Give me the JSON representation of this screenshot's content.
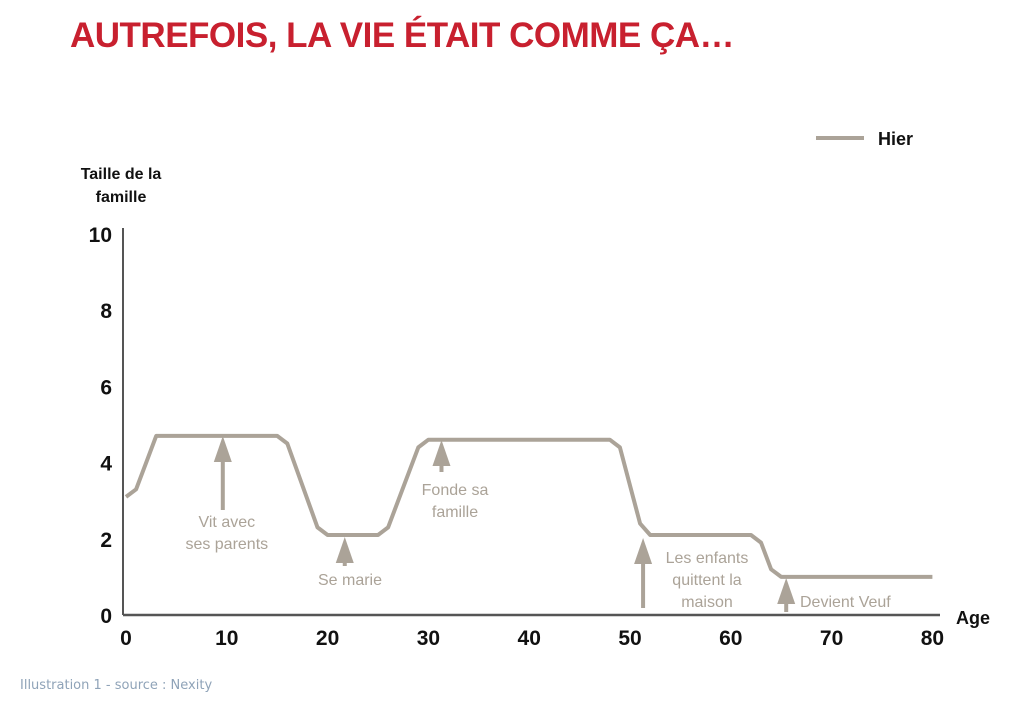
{
  "title": "AUTREFOIS, LA VIE ÉTAIT COMME ÇA…",
  "caption": "Illustration 1 - source : Nexity",
  "colors": {
    "title": "#c8202f",
    "series": "#aba398",
    "axis": "#555555",
    "caption": "#8fa3b8"
  },
  "chart_data": {
    "type": "line",
    "title": "AUTREFOIS, LA VIE ÉTAIT COMME ÇA…",
    "xlabel": "Age",
    "ylabel": "Taille de la famille",
    "ylabel_lines": [
      "Taille de la",
      "famille"
    ],
    "xlim": [
      0,
      80
    ],
    "ylim": [
      0,
      10
    ],
    "x_ticks": [
      0,
      10,
      20,
      30,
      40,
      50,
      60,
      70,
      80
    ],
    "y_ticks": [
      0,
      2,
      4,
      6,
      8,
      10
    ],
    "grid": false,
    "legend": {
      "position": "top-right",
      "entries": [
        "Hier"
      ]
    },
    "series": [
      {
        "name": "Hier",
        "x": [
          0,
          1,
          2,
          3,
          15,
          16,
          19,
          20,
          25,
          26,
          29,
          30,
          48,
          49,
          51,
          52,
          62,
          63,
          64,
          65,
          80
        ],
        "y": [
          3.1,
          3.3,
          4.0,
          4.7,
          4.7,
          4.5,
          2.3,
          2.1,
          2.1,
          2.3,
          4.4,
          4.6,
          4.6,
          4.4,
          2.4,
          2.1,
          2.1,
          1.9,
          1.2,
          1.0,
          1.0
        ]
      }
    ],
    "annotations": [
      {
        "x": 10,
        "lines": [
          "Vit avec",
          "ses parents"
        ]
      },
      {
        "x": 22,
        "lines": [
          "Se marie"
        ]
      },
      {
        "x": 31,
        "lines": [
          "Fonde sa",
          "famille"
        ]
      },
      {
        "x": 51,
        "lines": [
          "Les enfants",
          "quittent la",
          "maison"
        ]
      },
      {
        "x": 65,
        "lines": [
          "Devient Veuf"
        ]
      }
    ]
  }
}
